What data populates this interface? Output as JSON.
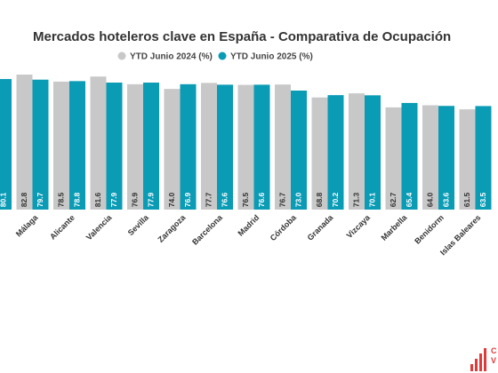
{
  "chart_data": {
    "type": "bar",
    "title": "Mercados hoteleros clave en España - Comparativa de Ocupación",
    "legend_position": "top-right",
    "categories": [
      "",
      "Málaga",
      "Alicante",
      "Valencia",
      "Sevilla",
      "Zaragoza",
      "Barcelona",
      "Madrid",
      "Córdoba",
      "Granada",
      "Vizcaya",
      "Marbella",
      "Benidorm",
      "Islas Baleares"
    ],
    "series": [
      {
        "name": "YTD Junio 2024 (%)",
        "color": "#c8c8c8",
        "values": [
          null,
          82.8,
          78.5,
          81.6,
          76.9,
          74.0,
          77.7,
          76.5,
          76.7,
          68.8,
          71.3,
          62.7,
          64.0,
          61.5
        ]
      },
      {
        "name": "YTD Junio 2025 (%)",
        "color": "#0a9bb5",
        "values": [
          80.1,
          79.7,
          78.8,
          77.9,
          77.9,
          76.9,
          76.6,
          76.6,
          73.0,
          70.2,
          70.1,
          65.4,
          63.6,
          63.5
        ]
      }
    ],
    "ylim": [
      0,
      90
    ],
    "grid": false
  },
  "logo": {
    "letters": "C\nV",
    "color": "#e03a3a"
  }
}
